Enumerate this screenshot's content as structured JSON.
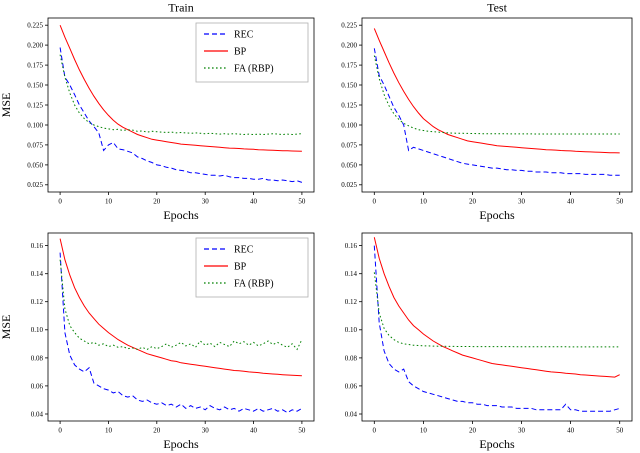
{
  "figure": {
    "col_titles": [
      "Train",
      "Test"
    ],
    "xlabel": "Epochs",
    "ylabel": "MSE",
    "legend_entries": [
      "REC",
      "BP",
      "FA (RBP)"
    ],
    "colors": {
      "rec": "#0000ff",
      "bp": "#ff0000",
      "fa_rbp": "#008000"
    }
  },
  "chart_data": [
    {
      "id": "train-top",
      "type": "line",
      "title": "Train",
      "xlabel": "Epochs",
      "ylabel": "MSE",
      "legend": true,
      "legend_position": "upper right",
      "grid": false,
      "xlim": [
        -2.5,
        52.5
      ],
      "ylim": [
        0.016,
        0.234
      ],
      "xticks": [
        0,
        10,
        20,
        30,
        40,
        50
      ],
      "yticks": [
        0.025,
        0.05,
        0.075,
        0.1,
        0.125,
        0.15,
        0.175,
        0.2,
        0.225
      ],
      "ytick_labels": [
        "0.025",
        "0.050",
        "0.075",
        "0.100",
        "0.125",
        "0.150",
        "0.175",
        "0.200",
        "0.225"
      ],
      "series": [
        {
          "name": "REC",
          "color": "#0000ff",
          "style": "dashed",
          "values": [
            0.197,
            0.16,
            0.15,
            0.138,
            0.125,
            0.115,
            0.105,
            0.098,
            0.09,
            0.068,
            0.075,
            0.078,
            0.07,
            0.069,
            0.067,
            0.065,
            0.06,
            0.058,
            0.055,
            0.053,
            0.05,
            0.049,
            0.047,
            0.046,
            0.044,
            0.043,
            0.042,
            0.04,
            0.04,
            0.039,
            0.038,
            0.037,
            0.037,
            0.036,
            0.037,
            0.035,
            0.034,
            0.034,
            0.033,
            0.033,
            0.032,
            0.032,
            0.033,
            0.031,
            0.031,
            0.03,
            0.031,
            0.03,
            0.029,
            0.03,
            0.028
          ]
        },
        {
          "name": "BP",
          "color": "#ff0000",
          "style": "solid",
          "values": [
            0.225,
            0.21,
            0.196,
            0.182,
            0.169,
            0.157,
            0.146,
            0.136,
            0.127,
            0.119,
            0.112,
            0.106,
            0.101,
            0.097,
            0.094,
            0.091,
            0.088,
            0.086,
            0.084,
            0.082,
            0.081,
            0.08,
            0.079,
            0.078,
            0.077,
            0.076,
            0.0755,
            0.075,
            0.0745,
            0.074,
            0.0735,
            0.073,
            0.0725,
            0.072,
            0.0715,
            0.071,
            0.0708,
            0.0705,
            0.07,
            0.0698,
            0.0695,
            0.069,
            0.0688,
            0.0685,
            0.0683,
            0.068,
            0.0678,
            0.0676,
            0.0674,
            0.0672,
            0.067
          ]
        },
        {
          "name": "FA (RBP)",
          "color": "#008000",
          "style": "dotted",
          "values": [
            0.188,
            0.16,
            0.14,
            0.125,
            0.115,
            0.108,
            0.103,
            0.1,
            0.098,
            0.096,
            0.095,
            0.094,
            0.0945,
            0.093,
            0.094,
            0.0935,
            0.092,
            0.0925,
            0.091,
            0.092,
            0.0915,
            0.091,
            0.0905,
            0.091,
            0.09,
            0.0905,
            0.09,
            0.0895,
            0.09,
            0.0895,
            0.089,
            0.0895,
            0.089,
            0.0885,
            0.089,
            0.0885,
            0.089,
            0.0885,
            0.088,
            0.0885,
            0.088,
            0.0885,
            0.088,
            0.0885,
            0.089,
            0.0885,
            0.088,
            0.0885,
            0.088,
            0.0885,
            0.089
          ]
        }
      ]
    },
    {
      "id": "test-top",
      "type": "line",
      "title": "Test",
      "xlabel": "Epochs",
      "ylabel": null,
      "legend": false,
      "grid": false,
      "xlim": [
        -2.5,
        52.5
      ],
      "ylim": [
        0.016,
        0.234
      ],
      "xticks": [
        0,
        10,
        20,
        30,
        40,
        50
      ],
      "yticks": [
        0.025,
        0.05,
        0.075,
        0.1,
        0.125,
        0.15,
        0.175,
        0.2,
        0.225
      ],
      "ytick_labels": [
        "0.025",
        "0.050",
        "0.075",
        "0.100",
        "0.125",
        "0.150",
        "0.175",
        "0.200",
        "0.225"
      ],
      "series": [
        {
          "name": "REC",
          "color": "#0000ff",
          "style": "dashed",
          "values": [
            0.196,
            0.162,
            0.15,
            0.136,
            0.122,
            0.112,
            0.1,
            0.068,
            0.072,
            0.07,
            0.068,
            0.066,
            0.064,
            0.062,
            0.06,
            0.058,
            0.056,
            0.054,
            0.052,
            0.051,
            0.05,
            0.049,
            0.048,
            0.047,
            0.046,
            0.046,
            0.045,
            0.044,
            0.044,
            0.043,
            0.043,
            0.042,
            0.042,
            0.041,
            0.041,
            0.041,
            0.04,
            0.04,
            0.04,
            0.039,
            0.039,
            0.039,
            0.039,
            0.038,
            0.038,
            0.038,
            0.038,
            0.038,
            0.037,
            0.037,
            0.037
          ]
        },
        {
          "name": "BP",
          "color": "#ff0000",
          "style": "solid",
          "values": [
            0.221,
            0.206,
            0.192,
            0.178,
            0.165,
            0.153,
            0.142,
            0.132,
            0.123,
            0.115,
            0.108,
            0.103,
            0.098,
            0.094,
            0.091,
            0.088,
            0.086,
            0.084,
            0.082,
            0.08,
            0.079,
            0.078,
            0.077,
            0.076,
            0.075,
            0.074,
            0.0735,
            0.073,
            0.0725,
            0.072,
            0.0715,
            0.071,
            0.0705,
            0.07,
            0.0695,
            0.069,
            0.0688,
            0.0685,
            0.068,
            0.0678,
            0.0675,
            0.067,
            0.0668,
            0.0665,
            0.0663,
            0.066,
            0.0658,
            0.0655,
            0.0653,
            0.0651,
            0.065
          ]
        },
        {
          "name": "FA (RBP)",
          "color": "#008000",
          "style": "dotted",
          "values": [
            0.187,
            0.158,
            0.138,
            0.124,
            0.114,
            0.107,
            0.102,
            0.099,
            0.096,
            0.094,
            0.093,
            0.092,
            0.0915,
            0.091,
            0.0905,
            0.09,
            0.0898,
            0.0896,
            0.0895,
            0.0894,
            0.0893,
            0.0892,
            0.0891,
            0.089,
            0.089,
            0.0889,
            0.0889,
            0.0889,
            0.0888,
            0.0888,
            0.0888,
            0.0888,
            0.0888,
            0.0887,
            0.0887,
            0.0887,
            0.0887,
            0.0887,
            0.0887,
            0.0887,
            0.0887,
            0.0887,
            0.0887,
            0.0887,
            0.0887,
            0.0887,
            0.0887,
            0.0887,
            0.0887,
            0.0887,
            0.0887
          ]
        }
      ]
    },
    {
      "id": "train-bottom",
      "type": "line",
      "title": null,
      "xlabel": "Epochs",
      "ylabel": "MSE",
      "legend": true,
      "legend_position": "upper right",
      "grid": false,
      "xlim": [
        -2.5,
        52.5
      ],
      "ylim": [
        0.035,
        0.169
      ],
      "xticks": [
        0,
        10,
        20,
        30,
        40,
        50
      ],
      "yticks": [
        0.04,
        0.06,
        0.08,
        0.1,
        0.12,
        0.14,
        0.16
      ],
      "ytick_labels": [
        "0.04",
        "0.06",
        "0.08",
        "0.10",
        "0.12",
        "0.14",
        "0.16"
      ],
      "series": [
        {
          "name": "REC",
          "color": "#0000ff",
          "style": "dashed",
          "values": [
            0.155,
            0.098,
            0.082,
            0.075,
            0.072,
            0.07,
            0.073,
            0.062,
            0.06,
            0.058,
            0.057,
            0.055,
            0.056,
            0.053,
            0.052,
            0.053,
            0.05,
            0.049,
            0.05,
            0.048,
            0.047,
            0.048,
            0.046,
            0.047,
            0.045,
            0.047,
            0.044,
            0.046,
            0.044,
            0.045,
            0.043,
            0.046,
            0.044,
            0.043,
            0.045,
            0.043,
            0.044,
            0.042,
            0.044,
            0.043,
            0.042,
            0.044,
            0.042,
            0.043,
            0.044,
            0.042,
            0.043,
            0.041,
            0.043,
            0.042,
            0.044
          ]
        },
        {
          "name": "BP",
          "color": "#ff0000",
          "style": "solid",
          "values": [
            0.165,
            0.15,
            0.139,
            0.13,
            0.123,
            0.117,
            0.112,
            0.108,
            0.104,
            0.101,
            0.098,
            0.0955,
            0.093,
            0.091,
            0.089,
            0.0875,
            0.086,
            0.0845,
            0.083,
            0.082,
            0.081,
            0.08,
            0.079,
            0.078,
            0.0775,
            0.0765,
            0.076,
            0.0755,
            0.075,
            0.0745,
            0.074,
            0.0735,
            0.073,
            0.0725,
            0.072,
            0.0715,
            0.071,
            0.0708,
            0.0705,
            0.07,
            0.0698,
            0.0695,
            0.069,
            0.0688,
            0.0685,
            0.0683,
            0.068,
            0.0678,
            0.0676,
            0.0674,
            0.0672
          ]
        },
        {
          "name": "FA (RBP)",
          "color": "#008000",
          "style": "dotted",
          "values": [
            0.15,
            0.115,
            0.103,
            0.098,
            0.094,
            0.092,
            0.09,
            0.091,
            0.089,
            0.09,
            0.088,
            0.089,
            0.0875,
            0.088,
            0.0865,
            0.087,
            0.086,
            0.0875,
            0.086,
            0.088,
            0.0865,
            0.088,
            0.09,
            0.0875,
            0.089,
            0.091,
            0.0885,
            0.09,
            0.0875,
            0.092,
            0.089,
            0.0905,
            0.088,
            0.091,
            0.0895,
            0.088,
            0.092,
            0.09,
            0.0915,
            0.089,
            0.091,
            0.0885,
            0.09,
            0.092,
            0.0895,
            0.091,
            0.089,
            0.0875,
            0.09,
            0.086,
            0.093
          ]
        }
      ]
    },
    {
      "id": "test-bottom",
      "type": "line",
      "title": null,
      "xlabel": "Epochs",
      "ylabel": null,
      "legend": false,
      "grid": false,
      "xlim": [
        -2.5,
        52.5
      ],
      "ylim": [
        0.035,
        0.169
      ],
      "xticks": [
        0,
        10,
        20,
        30,
        40,
        50
      ],
      "yticks": [
        0.04,
        0.06,
        0.08,
        0.1,
        0.12,
        0.14,
        0.16
      ],
      "ytick_labels": [
        "0.04",
        "0.06",
        "0.08",
        "0.10",
        "0.12",
        "0.14",
        "0.16"
      ],
      "series": [
        {
          "name": "REC",
          "color": "#0000ff",
          "style": "dashed",
          "values": [
            0.16,
            0.105,
            0.085,
            0.076,
            0.072,
            0.07,
            0.072,
            0.063,
            0.06,
            0.058,
            0.056,
            0.055,
            0.054,
            0.053,
            0.052,
            0.051,
            0.05,
            0.049,
            0.049,
            0.048,
            0.048,
            0.047,
            0.047,
            0.046,
            0.046,
            0.046,
            0.045,
            0.045,
            0.045,
            0.044,
            0.044,
            0.044,
            0.044,
            0.043,
            0.043,
            0.043,
            0.043,
            0.043,
            0.043,
            0.047,
            0.043,
            0.043,
            0.042,
            0.042,
            0.042,
            0.042,
            0.042,
            0.042,
            0.042,
            0.043,
            0.044
          ]
        },
        {
          "name": "BP",
          "color": "#ff0000",
          "style": "solid",
          "values": [
            0.166,
            0.151,
            0.14,
            0.131,
            0.123,
            0.117,
            0.112,
            0.107,
            0.103,
            0.1,
            0.097,
            0.0945,
            0.092,
            0.09,
            0.088,
            0.0865,
            0.085,
            0.0835,
            0.082,
            0.081,
            0.08,
            0.079,
            0.078,
            0.077,
            0.076,
            0.0755,
            0.075,
            0.0745,
            0.074,
            0.0735,
            0.073,
            0.0725,
            0.072,
            0.0715,
            0.071,
            0.0705,
            0.07,
            0.0698,
            0.0695,
            0.069,
            0.0688,
            0.0685,
            0.068,
            0.0678,
            0.0675,
            0.0673,
            0.067,
            0.0668,
            0.0665,
            0.0663,
            0.068
          ]
        },
        {
          "name": "FA (RBP)",
          "color": "#008000",
          "style": "dotted",
          "values": [
            0.141,
            0.112,
            0.101,
            0.096,
            0.093,
            0.091,
            0.09,
            0.0895,
            0.089,
            0.0888,
            0.0886,
            0.0885,
            0.0884,
            0.0883,
            0.0883,
            0.0882,
            0.0882,
            0.0881,
            0.0881,
            0.0881,
            0.088,
            0.088,
            0.088,
            0.088,
            0.088,
            0.088,
            0.088,
            0.088,
            0.088,
            0.0879,
            0.0879,
            0.0879,
            0.0879,
            0.0879,
            0.0879,
            0.0879,
            0.0879,
            0.0879,
            0.0879,
            0.0879,
            0.0878,
            0.0878,
            0.0878,
            0.0878,
            0.0878,
            0.0878,
            0.0878,
            0.0878,
            0.0878,
            0.0878,
            0.0878
          ]
        }
      ]
    }
  ]
}
